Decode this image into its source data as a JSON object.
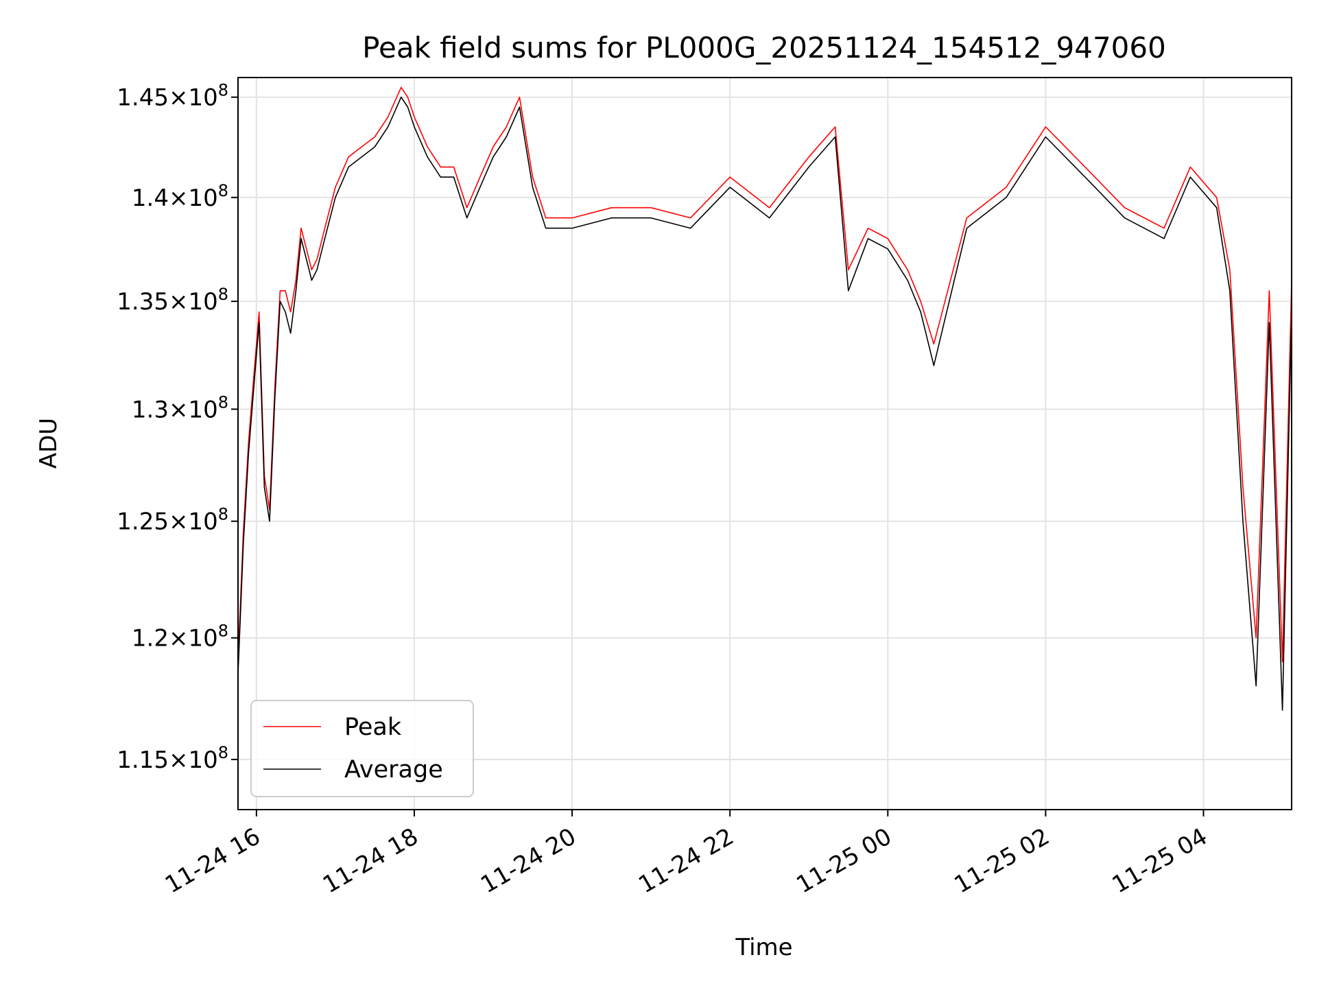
{
  "chart_data": {
    "type": "line",
    "title": "Peak field sums for PL000G_20251124_154512_947060",
    "xlabel": "Time",
    "ylabel": "ADU",
    "yscale": "log",
    "grid": true,
    "legend_position": "lower-left",
    "xlim": [
      "2025-11-24 15:46",
      "2025-11-25 05:07"
    ],
    "ylim": [
      113000000,
      146000000
    ],
    "x_ticks": [
      {
        "value": "2025-11-24 16:00",
        "label": "11-24 16"
      },
      {
        "value": "2025-11-24 18:00",
        "label": "11-24 18"
      },
      {
        "value": "2025-11-24 20:00",
        "label": "11-24 20"
      },
      {
        "value": "2025-11-24 22:00",
        "label": "11-24 22"
      },
      {
        "value": "2025-11-25 00:00",
        "label": "11-25 00"
      },
      {
        "value": "2025-11-25 02:00",
        "label": "11-25 02"
      },
      {
        "value": "2025-11-25 04:00",
        "label": "11-25 04"
      }
    ],
    "y_ticks": [
      {
        "value": 115000000,
        "mantissa": "1.15",
        "exponent": "8"
      },
      {
        "value": 120000000,
        "mantissa": "1.2",
        "exponent": "8"
      },
      {
        "value": 125000000,
        "mantissa": "1.25",
        "exponent": "8"
      },
      {
        "value": 130000000,
        "mantissa": "1.3",
        "exponent": "8"
      },
      {
        "value": 135000000,
        "mantissa": "1.35",
        "exponent": "8"
      },
      {
        "value": 140000000,
        "mantissa": "1.4",
        "exponent": "8"
      },
      {
        "value": 145000000,
        "mantissa": "1.45",
        "exponent": "8"
      }
    ],
    "tick_multiplier": "×10",
    "x": [
      "2025-11-24 15:46",
      "2025-11-24 15:50",
      "2025-11-24 15:54",
      "2025-11-24 15:58",
      "2025-11-24 16:02",
      "2025-11-24 16:06",
      "2025-11-24 16:10",
      "2025-11-24 16:14",
      "2025-11-24 16:18",
      "2025-11-24 16:22",
      "2025-11-24 16:26",
      "2025-11-24 16:30",
      "2025-11-24 16:34",
      "2025-11-24 16:38",
      "2025-11-24 16:42",
      "2025-11-24 16:46",
      "2025-11-24 16:50",
      "2025-11-24 16:54",
      "2025-11-24 17:00",
      "2025-11-24 17:10",
      "2025-11-24 17:20",
      "2025-11-24 17:30",
      "2025-11-24 17:40",
      "2025-11-24 17:50",
      "2025-11-24 17:55",
      "2025-11-24 18:00",
      "2025-11-24 18:10",
      "2025-11-24 18:20",
      "2025-11-24 18:30",
      "2025-11-24 18:40",
      "2025-11-24 18:50",
      "2025-11-24 19:00",
      "2025-11-24 19:10",
      "2025-11-24 19:20",
      "2025-11-24 19:30",
      "2025-11-24 19:40",
      "2025-11-24 20:00",
      "2025-11-24 20:30",
      "2025-11-24 21:00",
      "2025-11-24 21:30",
      "2025-11-24 22:00",
      "2025-11-24 22:30",
      "2025-11-24 23:00",
      "2025-11-24 23:20",
      "2025-11-24 23:30",
      "2025-11-24 23:45",
      "2025-11-25 00:00",
      "2025-11-25 00:15",
      "2025-11-25 00:25",
      "2025-11-25 00:35",
      "2025-11-25 01:00",
      "2025-11-25 01:30",
      "2025-11-25 02:00",
      "2025-11-25 02:30",
      "2025-11-25 03:00",
      "2025-11-25 03:30",
      "2025-11-25 03:50",
      "2025-11-25 04:10",
      "2025-11-25 04:20",
      "2025-11-25 04:30",
      "2025-11-25 04:40",
      "2025-11-25 04:50",
      "2025-11-25 05:00",
      "2025-11-25 05:07"
    ],
    "series": [
      {
        "name": "Peak",
        "color": "#ff0000",
        "values": [
          119000000,
          124500000,
          128500000,
          131500000,
          134500000,
          127000000,
          125500000,
          131000000,
          135500000,
          135500000,
          134500000,
          136000000,
          138500000,
          137500000,
          136500000,
          137000000,
          138000000,
          139000000,
          140500000,
          142000000,
          142500000,
          143000000,
          144000000,
          145500000,
          145000000,
          144000000,
          142500000,
          141500000,
          141500000,
          139500000,
          141000000,
          142500000,
          143500000,
          145000000,
          141000000,
          139000000,
          139000000,
          139500000,
          139500000,
          139000000,
          141000000,
          139500000,
          142000000,
          143500000,
          136500000,
          138500000,
          138000000,
          136500000,
          135000000,
          133000000,
          139000000,
          140500000,
          143500000,
          141500000,
          139500000,
          138500000,
          141500000,
          140000000,
          136500000,
          126500000,
          120000000,
          135500000,
          119000000,
          136000000
        ]
      },
      {
        "name": "Average",
        "color": "#000000",
        "values": [
          118500000,
          124000000,
          128000000,
          131000000,
          134000000,
          126500000,
          125000000,
          130500000,
          135000000,
          134500000,
          133500000,
          135500000,
          138000000,
          137000000,
          136000000,
          136500000,
          137500000,
          138500000,
          140000000,
          141500000,
          142000000,
          142500000,
          143500000,
          145000000,
          144500000,
          143500000,
          142000000,
          141000000,
          141000000,
          139000000,
          140500000,
          142000000,
          143000000,
          144500000,
          140500000,
          138500000,
          138500000,
          139000000,
          139000000,
          138500000,
          140500000,
          139000000,
          141500000,
          143000000,
          135500000,
          138000000,
          137500000,
          136000000,
          134500000,
          132000000,
          138500000,
          140000000,
          143000000,
          141000000,
          139000000,
          138000000,
          141000000,
          139500000,
          135500000,
          125000000,
          118000000,
          134000000,
          117000000,
          134500000
        ]
      }
    ]
  }
}
